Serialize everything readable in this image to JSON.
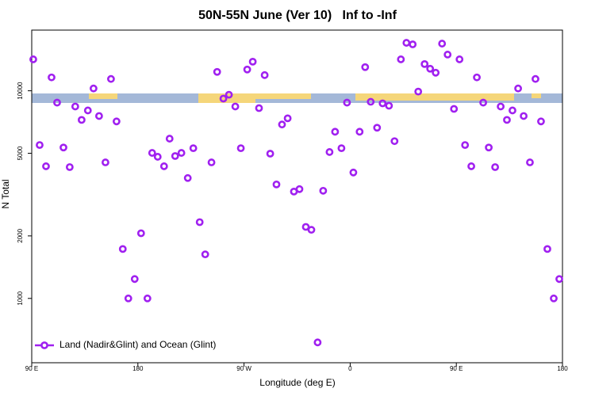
{
  "chart_data": {
    "type": "scatter",
    "title": "50N-55N June (Ver 10)   Inf to -Inf",
    "xlabel": "Longitude (deg E)",
    "ylabel": "N Total",
    "log_y": true,
    "legend_position": "bottom-left",
    "xlim": [
      90,
      540
    ],
    "xticks": [
      {
        "value": 90,
        "label": "90 E"
      },
      {
        "value": 180,
        "label": "180"
      },
      {
        "value": 270,
        "label": "90 W"
      },
      {
        "value": 360,
        "label": "0"
      },
      {
        "value": 450,
        "label": "90 E"
      },
      {
        "value": 540,
        "label": "180"
      }
    ],
    "ylim": [
      490,
      19600
    ],
    "yticks": [
      1000,
      2000,
      5000,
      10000
    ],
    "series": [
      {
        "name": "Land (Nadir&Glint) and Ocean (Glint)",
        "color": "#a020f0",
        "x": [
          91.3,
          96.7,
          102.1,
          106.8,
          111.5,
          116.9,
          122.2,
          126.9,
          132.3,
          137.6,
          142.4,
          147.1,
          152.5,
          157.2,
          161.9,
          167.2,
          171.9,
          177.3,
          182.7,
          188.1,
          192.1,
          196.8,
          202.2,
          206.9,
          211.6,
          216.9,
          222.3,
          227.0,
          232.4,
          237.1,
          242.4,
          247.2,
          252.5,
          257.2,
          262.6,
          267.3,
          272.7,
          277.4,
          282.7,
          287.5,
          292.2,
          297.5,
          302.2,
          307.0,
          312.3,
          317.0,
          322.4,
          327.1,
          332.4,
          337.1,
          342.5,
          347.2,
          352.6,
          357.3,
          362.7,
          368.0,
          372.7,
          377.4,
          382.8,
          387.5,
          392.9,
          397.6,
          403.0,
          407.7,
          413.0,
          417.7,
          423.1,
          427.8,
          432.5,
          437.9,
          442.6,
          448.0,
          452.7,
          457.4,
          462.7,
          467.4,
          472.8,
          477.5,
          482.9,
          487.6,
          492.9,
          497.6,
          502.4,
          507.1,
          512.4,
          517.1,
          521.8,
          527.2,
          532.6,
          537.3
        ],
        "values": [
          14170,
          5480,
          4330,
          11600,
          8770,
          5330,
          4290,
          8400,
          7240,
          8040,
          10260,
          7560,
          4520,
          11400,
          7120,
          1730,
          1000,
          1240,
          2060,
          1000,
          5020,
          4810,
          4330,
          5880,
          4850,
          5020,
          3800,
          5290,
          2330,
          1630,
          4520,
          12330,
          9170,
          9570,
          8400,
          5290,
          12660,
          13810,
          8250,
          11900,
          4980,
          3540,
          6880,
          7370,
          3270,
          3360,
          2210,
          2140,
          614,
          3300,
          5070,
          6350,
          5290,
          8770,
          4040,
          6350,
          13000,
          8850,
          6640,
          8700,
          8470,
          5720,
          14170,
          17020,
          16730,
          9910,
          13450,
          12770,
          12220,
          16870,
          14940,
          8180,
          14170,
          5480,
          4330,
          11600,
          8770,
          5330,
          4290,
          8400,
          7240,
          8040,
          10260,
          7560,
          4520,
          11400,
          7120,
          1730,
          1000,
          1240
        ]
      }
    ]
  }
}
